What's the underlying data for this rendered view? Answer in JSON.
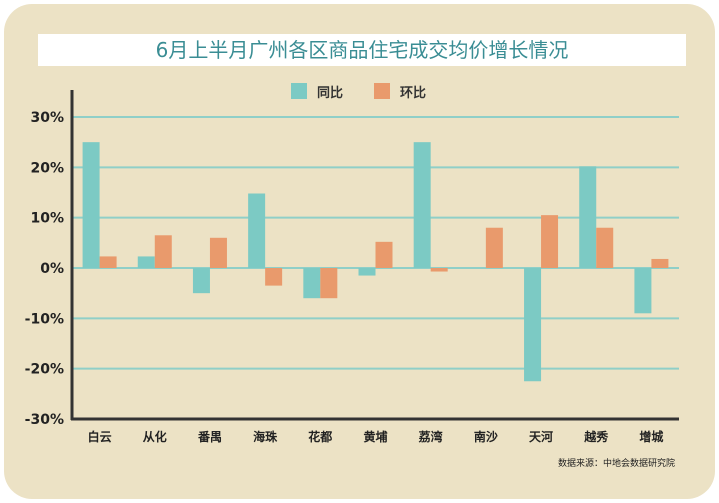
{
  "chart_data": {
    "type": "bar",
    "title": "6月上半月广州各区商品住宅成交均价增长情况",
    "categories": [
      "白云",
      "从化",
      "番禺",
      "海珠",
      "花都",
      "黄埔",
      "荔湾",
      "南沙",
      "天河",
      "越秀",
      "增城"
    ],
    "series": [
      {
        "name": "同比",
        "color": "#7ccac4",
        "values": [
          25,
          2.3,
          -5,
          14.8,
          -6,
          -1.5,
          25,
          null,
          -22.5,
          20.2,
          -9
        ]
      },
      {
        "name": "环比",
        "color": "#e99a6c",
        "values": [
          2.3,
          6.5,
          6,
          -3.5,
          -6,
          5.2,
          -0.7,
          8,
          10.5,
          8,
          1.8
        ]
      }
    ],
    "ylim": [
      -30,
      30
    ],
    "yticks": [
      "30%",
      "20%",
      "10%",
      "0%",
      "-10%",
      "-20%",
      "-30%"
    ],
    "ytick_values": [
      30,
      20,
      10,
      0,
      -10,
      -20,
      -30
    ],
    "xlabel": "",
    "ylabel": "",
    "grid": true,
    "legend": "top-center",
    "source": "数据来源：中地会数据研究院"
  }
}
